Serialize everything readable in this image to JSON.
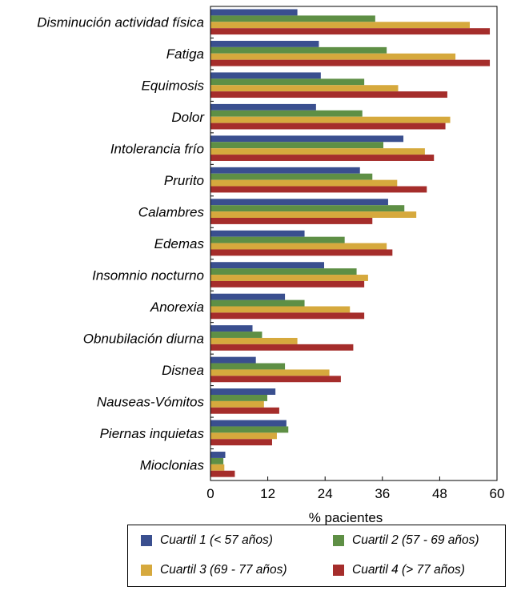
{
  "chart_data": {
    "type": "bar",
    "orientation": "horizontal",
    "title": "",
    "xlabel": "% pacientes",
    "xlim": [
      0,
      60
    ],
    "xticks": [
      0,
      12,
      24,
      36,
      48,
      60
    ],
    "grid": false,
    "legend_position": "bottom",
    "categories": [
      "Disminución actividad física",
      "Fatiga",
      "Equimosis",
      "Dolor",
      "Intolerancia frío",
      "Prurito",
      "Calambres",
      "Edemas",
      "Insomnio nocturno",
      "Anorexia",
      "Obnubilación diurna",
      "Disnea",
      "Nauseas-Vómitos",
      "Piernas inquietas",
      "Mioclonias"
    ],
    "series": [
      {
        "name": "Cuartil 1 (< 57 años)",
        "color": "#3a4f8f",
        "values": [
          18.2,
          22.7,
          23.1,
          22.1,
          40.4,
          31.3,
          37.2,
          19.7,
          23.8,
          15.6,
          8.8,
          9.5,
          13.6,
          15.9,
          3.1
        ]
      },
      {
        "name": "Cuartil 2 (57 - 69 años)",
        "color": "#5e8f45",
        "values": [
          34.5,
          36.9,
          32.2,
          31.8,
          36.2,
          33.9,
          40.6,
          28.1,
          30.6,
          19.7,
          10.8,
          15.6,
          11.9,
          16.3,
          2.7
        ]
      },
      {
        "name": "Cuartil 3 (69 - 77 años)",
        "color": "#d6a93d",
        "values": [
          54.3,
          51.3,
          39.3,
          50.2,
          44.9,
          39.1,
          43.1,
          36.9,
          33.0,
          29.2,
          18.2,
          24.9,
          11.2,
          13.9,
          2.9
        ]
      },
      {
        "name": "Cuartil 4 (> 77 años)",
        "color": "#a52d2b",
        "values": [
          58.5,
          58.5,
          49.6,
          49.2,
          46.8,
          45.3,
          33.9,
          38.1,
          32.2,
          32.2,
          29.9,
          27.3,
          14.4,
          12.9,
          5.1
        ]
      }
    ]
  }
}
